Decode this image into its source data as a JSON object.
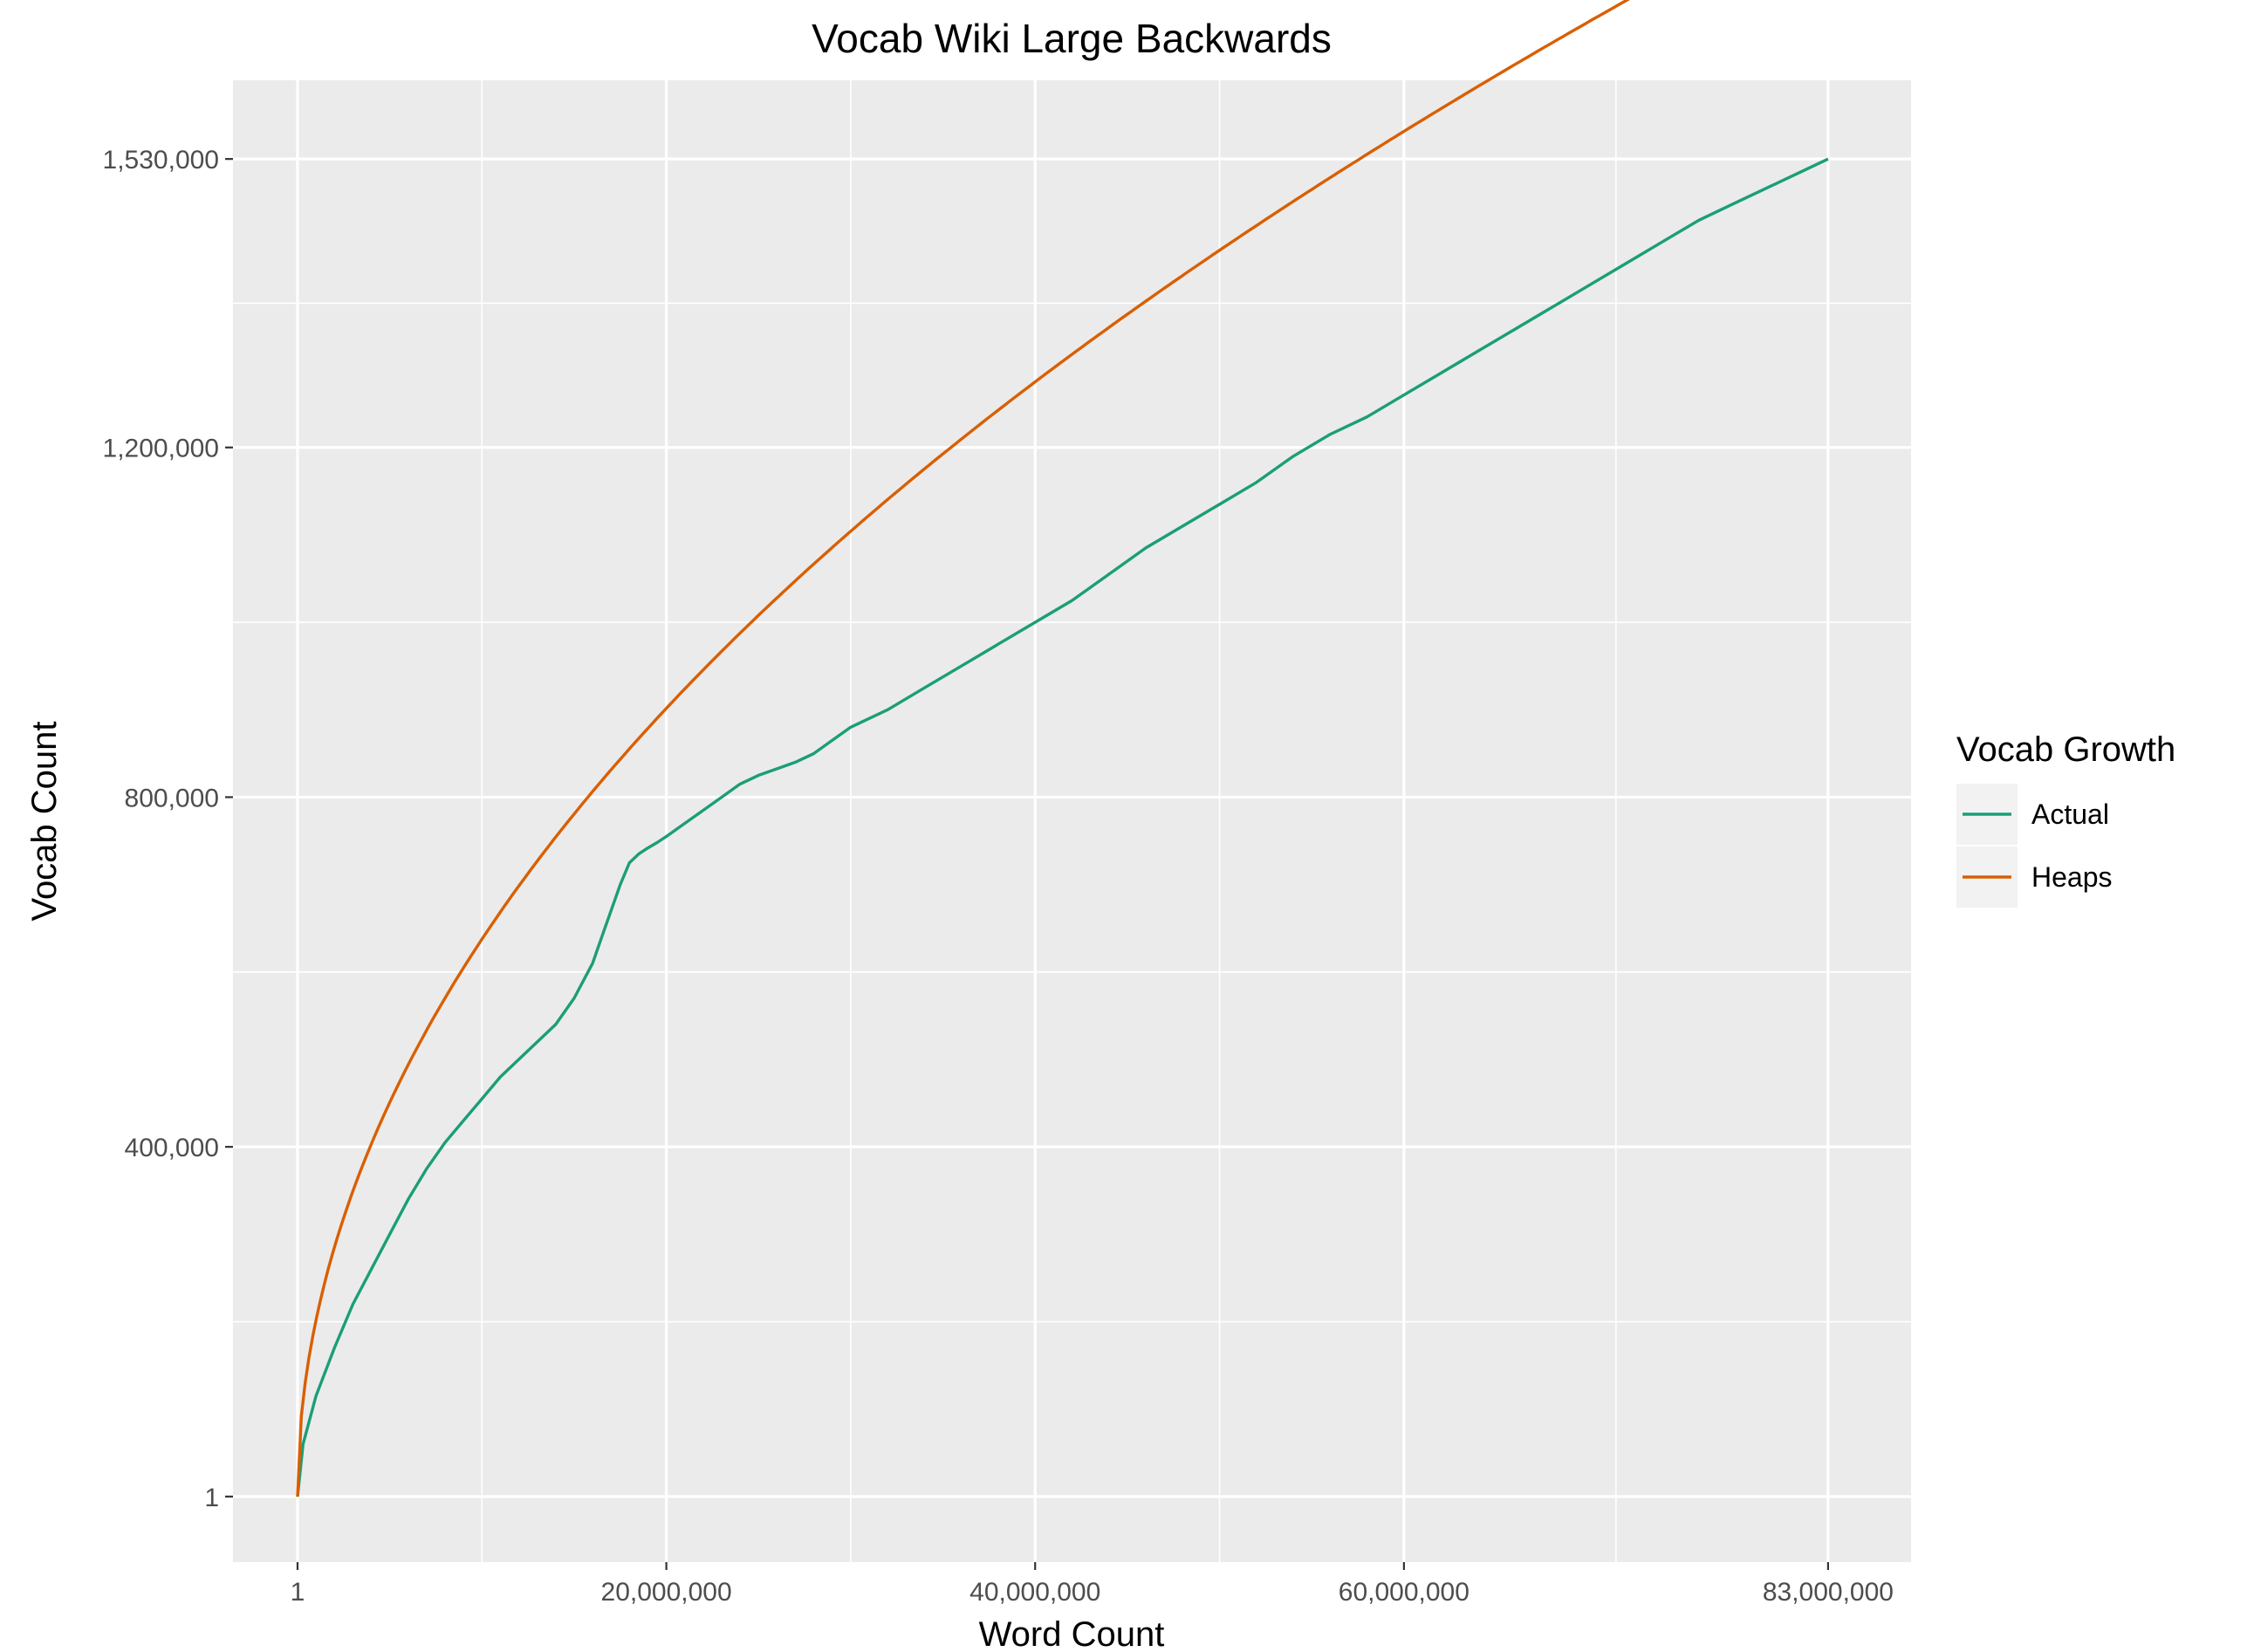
{
  "chart_data": {
    "type": "line",
    "title": "Vocab Wiki Large Backwards",
    "xlabel": "Word Count",
    "ylabel": "Vocab Count",
    "xlim": [
      -3500000,
      87500000
    ],
    "ylim": [
      -75000,
      1620000
    ],
    "x_ticks": [
      {
        "value": 1,
        "label": "1"
      },
      {
        "value": 20000000,
        "label": "20,000,000"
      },
      {
        "value": 40000000,
        "label": "40,000,000"
      },
      {
        "value": 60000000,
        "label": "60,000,000"
      },
      {
        "value": 83000000,
        "label": "83,000,000"
      }
    ],
    "x_minor_ticks": [
      10000000,
      30000000,
      50000000,
      71500000
    ],
    "y_ticks": [
      {
        "value": 1,
        "label": "1"
      },
      {
        "value": 400000,
        "label": "400,000"
      },
      {
        "value": 800000,
        "label": "800,000"
      },
      {
        "value": 1200000,
        "label": "1,200,000"
      },
      {
        "value": 1530000,
        "label": "1,530,000"
      }
    ],
    "y_minor_ticks": [
      200000,
      600000,
      1000000,
      1365000
    ],
    "grid": true,
    "legend": {
      "title": "Vocab Growth",
      "position": "right"
    },
    "series": [
      {
        "name": "Actual",
        "color": "#1b9e77",
        "x": [
          0,
          300000,
          1000000,
          2000000,
          3000000,
          4000000,
          5000000,
          6000000,
          7000000,
          8000000,
          9000000,
          10000000,
          11000000,
          12000000,
          13000000,
          14000000,
          15000000,
          16000000,
          16500000,
          17000000,
          17500000,
          18000000,
          18500000,
          19000000,
          19500000,
          20000000,
          21000000,
          22000000,
          23000000,
          24000000,
          25000000,
          27000000,
          28000000,
          29000000,
          30000000,
          32000000,
          34000000,
          36000000,
          38000000,
          40000000,
          42000000,
          44000000,
          46000000,
          48000000,
          50000000,
          52000000,
          54000000,
          56000000,
          58000000,
          60000000,
          62000000,
          64000000,
          66000000,
          68000000,
          70000000,
          72000000,
          74000000,
          76000000,
          78000000,
          80000000,
          82000000,
          83000000
        ],
        "y": [
          1,
          60000,
          115000,
          170000,
          220000,
          260000,
          300000,
          340000,
          375000,
          405000,
          430000,
          455000,
          480000,
          500000,
          520000,
          540000,
          570000,
          610000,
          640000,
          670000,
          700000,
          725000,
          735000,
          742000,
          748000,
          755000,
          770000,
          785000,
          800000,
          815000,
          825000,
          840000,
          850000,
          865000,
          880000,
          900000,
          925000,
          950000,
          975000,
          1000000,
          1025000,
          1055000,
          1085000,
          1110000,
          1135000,
          1160000,
          1190000,
          1215000,
          1235000,
          1260000,
          1285000,
          1310000,
          1335000,
          1360000,
          1385000,
          1410000,
          1435000,
          1460000,
          1480000,
          1500000,
          1520000,
          1530000
        ]
      },
      {
        "name": "Heaps",
        "color": "#d95f02",
        "heaps_k": 201.6,
        "heaps_beta": 0.5,
        "x_max": 83000000
      }
    ]
  }
}
